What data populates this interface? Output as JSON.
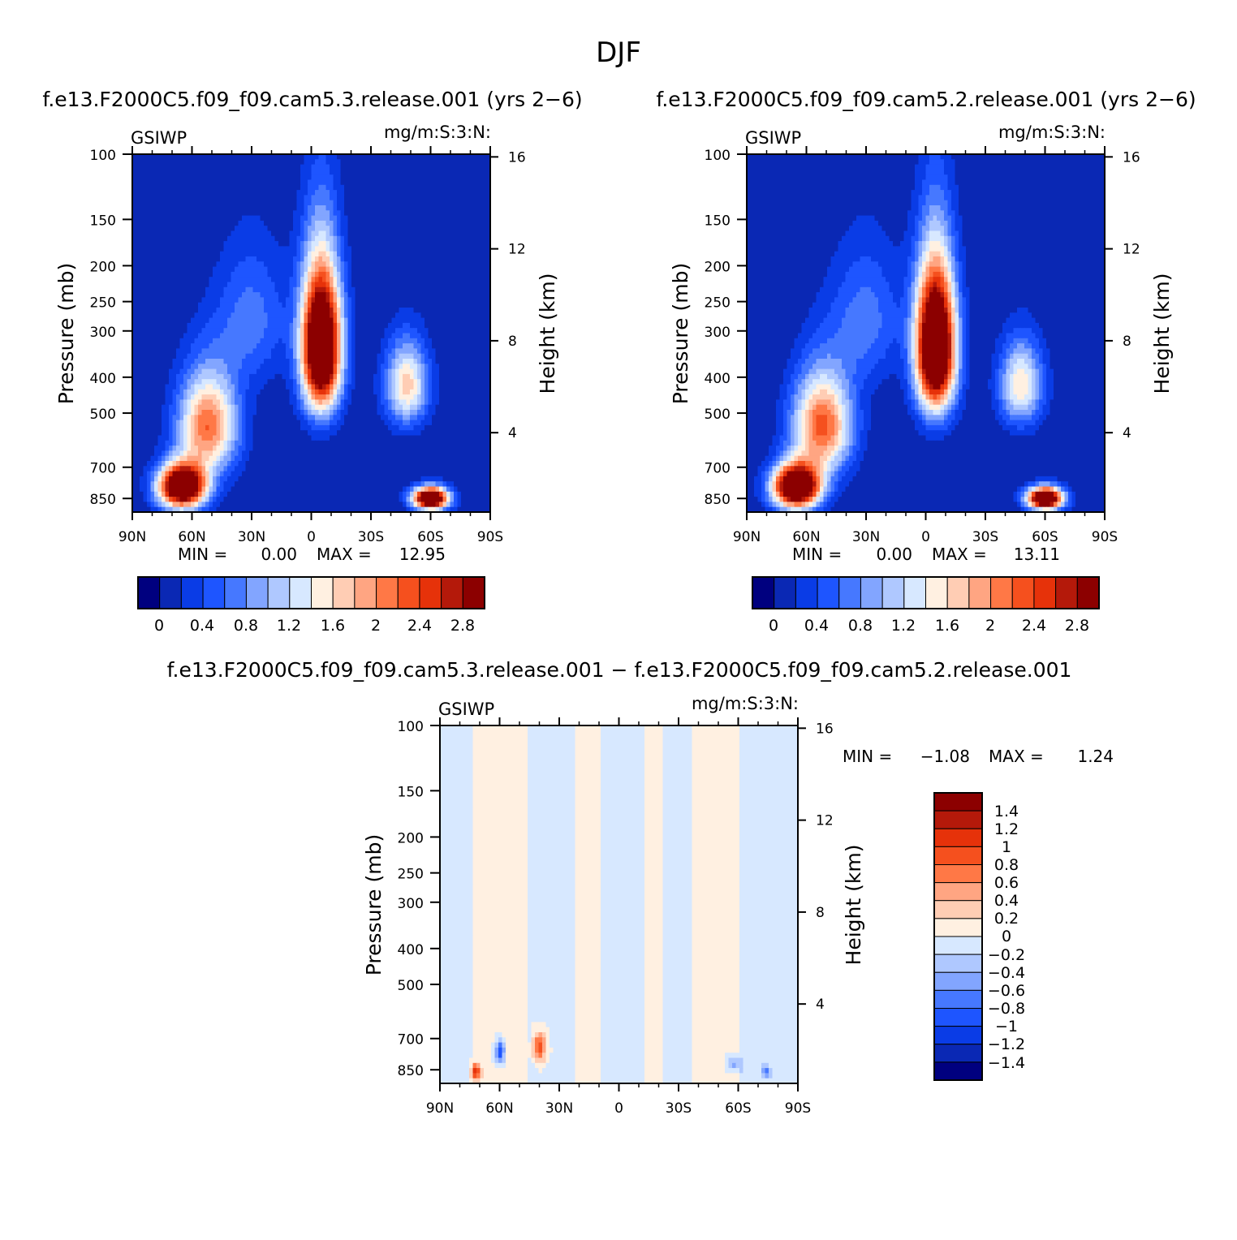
{
  "figure": {
    "title": "DJF"
  },
  "colors": {
    "field_levels": [
      "#00007f",
      "#0a28b4",
      "#0a3ce6",
      "#1e55ff",
      "#4678ff",
      "#82a5ff",
      "#afc8ff",
      "#d7e8ff",
      "#fff0e1",
      "#ffcdb4",
      "#ffa582",
      "#ff7846",
      "#f5501e",
      "#e6320a",
      "#b4190a",
      "#8c0000"
    ],
    "diff_levels": [
      "#00007f",
      "#0a28b4",
      "#0a3ce6",
      "#1e55ff",
      "#4678ff",
      "#82a5ff",
      "#afc8ff",
      "#d7e8ff",
      "#fff0e1",
      "#ffcdb4",
      "#ffa582",
      "#ff7846",
      "#f5501e",
      "#e6320a",
      "#b4190a",
      "#8c0000"
    ]
  },
  "chart_data": [
    {
      "type": "heatmap",
      "title": "f.e13.F2000C5.f09_f09.cam5.3.release.001 (yrs 2−6)",
      "left_label": "GSIWP",
      "right_label": "mg/m:S:3:N:",
      "xlabel": "",
      "ylabel": "Pressure (mb)",
      "y2label": "Height (km)",
      "x_ticks": [
        "90N",
        "60N",
        "30N",
        "0",
        "30S",
        "60S",
        "90S"
      ],
      "y_ticks": [
        "100",
        "150",
        "200",
        "250",
        "300",
        "400",
        "500",
        "700",
        "850"
      ],
      "y2_ticks": [
        "4",
        "8",
        "12",
        "16"
      ],
      "xlim": [
        90,
        -90
      ],
      "ylim": [
        100,
        925
      ],
      "stats": {
        "min_label": "MIN =",
        "min": "0.00",
        "max_label": "MAX =",
        "max": "12.95"
      },
      "colorbar": {
        "labels": [
          "0",
          "0.4",
          "0.8",
          "1.2",
          "1.6",
          "2",
          "2.4",
          "2.8"
        ]
      },
      "features": [
        {
          "lat": -5,
          "p": 330,
          "amp": 4.2,
          "slat": 10,
          "sp": 150
        },
        {
          "lat": 65,
          "p": 790,
          "amp": 4.0,
          "slat": 12,
          "sp": 110
        },
        {
          "lat": 52,
          "p": 540,
          "amp": 2.2,
          "slat": 15,
          "sp": 170
        },
        {
          "lat": -60,
          "p": 850,
          "amp": 4.0,
          "slat": 9,
          "sp": 60
        },
        {
          "lat": -48,
          "p": 420,
          "amp": 1.7,
          "slat": 11,
          "sp": 110
        },
        {
          "lat": 30,
          "p": 280,
          "amp": 0.7,
          "slat": 18,
          "sp": 120
        }
      ]
    },
    {
      "type": "heatmap",
      "title": "f.e13.F2000C5.f09_f09.cam5.2.release.001 (yrs 2−6)",
      "left_label": "GSIWP",
      "right_label": "mg/m:S:3:N:",
      "xlabel": "",
      "ylabel": "Pressure (mb)",
      "y2label": "Height (km)",
      "x_ticks": [
        "90N",
        "60N",
        "30N",
        "0",
        "30S",
        "60S",
        "90S"
      ],
      "y_ticks": [
        "100",
        "150",
        "200",
        "250",
        "300",
        "400",
        "500",
        "700",
        "850"
      ],
      "y2_ticks": [
        "4",
        "8",
        "12",
        "16"
      ],
      "xlim": [
        90,
        -90
      ],
      "ylim": [
        100,
        925
      ],
      "stats": {
        "min_label": "MIN =",
        "min": "0.00",
        "max_label": "MAX =",
        "max": "13.11"
      },
      "colorbar": {
        "labels": [
          "0",
          "0.4",
          "0.8",
          "1.2",
          "1.6",
          "2",
          "2.4",
          "2.8"
        ]
      },
      "features": [
        {
          "lat": -5,
          "p": 330,
          "amp": 4.3,
          "slat": 10,
          "sp": 150
        },
        {
          "lat": 65,
          "p": 790,
          "amp": 4.1,
          "slat": 12,
          "sp": 110
        },
        {
          "lat": 52,
          "p": 540,
          "amp": 2.3,
          "slat": 15,
          "sp": 170
        },
        {
          "lat": -60,
          "p": 850,
          "amp": 4.0,
          "slat": 9,
          "sp": 60
        },
        {
          "lat": -48,
          "p": 420,
          "amp": 1.6,
          "slat": 11,
          "sp": 110
        },
        {
          "lat": 30,
          "p": 280,
          "amp": 0.7,
          "slat": 18,
          "sp": 120
        }
      ]
    },
    {
      "type": "heatmap",
      "title": "f.e13.F2000C5.f09_f09.cam5.3.release.001 − f.e13.F2000C5.f09_f09.cam5.2.release.001",
      "left_label": "GSIWP",
      "right_label": "mg/m:S:3:N:",
      "xlabel": "",
      "ylabel": "Pressure (mb)",
      "y2label": "Height (km)",
      "x_ticks": [
        "90N",
        "60N",
        "30N",
        "0",
        "30S",
        "60S",
        "90S"
      ],
      "y_ticks": [
        "100",
        "150",
        "200",
        "250",
        "300",
        "400",
        "500",
        "700",
        "850"
      ],
      "y2_ticks": [
        "4",
        "8",
        "12",
        "16"
      ],
      "xlim": [
        90,
        -90
      ],
      "ylim": [
        100,
        925
      ],
      "stats": {
        "min_label": "MIN =",
        "min": "−1.08",
        "max_label": "MAX =",
        "max": "1.24"
      },
      "colorbar": {
        "labels": [
          "1.4",
          "1.2",
          "1",
          "0.8",
          "0.6",
          "0.4",
          "0.2",
          "0",
          "−0.2",
          "−0.4",
          "−0.6",
          "−0.8",
          "−1",
          "−1.2",
          "−1.4"
        ]
      },
      "features": [
        {
          "lat": 72,
          "p": 860,
          "amp": 1.1,
          "slat": 2.5,
          "sp": 40
        },
        {
          "lat": 60,
          "p": 760,
          "amp": -1.0,
          "slat": 2.5,
          "sp": 55
        },
        {
          "lat": 40,
          "p": 740,
          "amp": 1.0,
          "slat": 3.5,
          "sp": 70
        },
        {
          "lat": -58,
          "p": 820,
          "amp": -0.6,
          "slat": 4,
          "sp": 40
        },
        {
          "lat": -74,
          "p": 860,
          "amp": -0.6,
          "slat": 2,
          "sp": 40
        }
      ],
      "lat_bands": [
        {
          "from": 90,
          "to": 74,
          "sign": -1
        },
        {
          "from": 74,
          "to": 45,
          "sign": 1
        },
        {
          "from": 45,
          "to": 22,
          "sign": -1
        },
        {
          "from": 22,
          "to": 10,
          "sign": 1
        },
        {
          "from": 10,
          "to": -12,
          "sign": -1
        },
        {
          "from": -12,
          "to": -22,
          "sign": 1
        },
        {
          "from": -22,
          "to": -36,
          "sign": -1
        },
        {
          "from": -36,
          "to": -60,
          "sign": 1
        },
        {
          "from": -60,
          "to": -72,
          "sign": -1
        },
        {
          "from": -72,
          "to": -90,
          "sign": -1
        }
      ]
    }
  ]
}
